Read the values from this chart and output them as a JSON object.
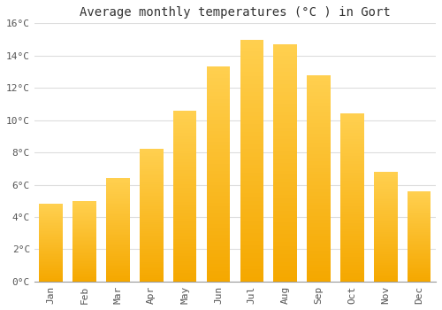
{
  "title": "Average monthly temperatures (°C ) in Gort",
  "months": [
    "Jan",
    "Feb",
    "Mar",
    "Apr",
    "May",
    "Jun",
    "Jul",
    "Aug",
    "Sep",
    "Oct",
    "Nov",
    "Dec"
  ],
  "values": [
    4.8,
    5.0,
    6.4,
    8.2,
    10.6,
    13.3,
    15.0,
    14.7,
    12.8,
    10.4,
    6.8,
    5.6
  ],
  "bar_color_bottom": "#F5A800",
  "bar_color_top": "#FFD050",
  "background_color": "#FFFFFF",
  "plot_bg_color": "#FFFFFF",
  "grid_color": "#DDDDDD",
  "text_color": "#555555",
  "ylim": [
    0,
    16
  ],
  "ytick_step": 2,
  "title_fontsize": 10,
  "tick_fontsize": 8,
  "font_family": "monospace"
}
